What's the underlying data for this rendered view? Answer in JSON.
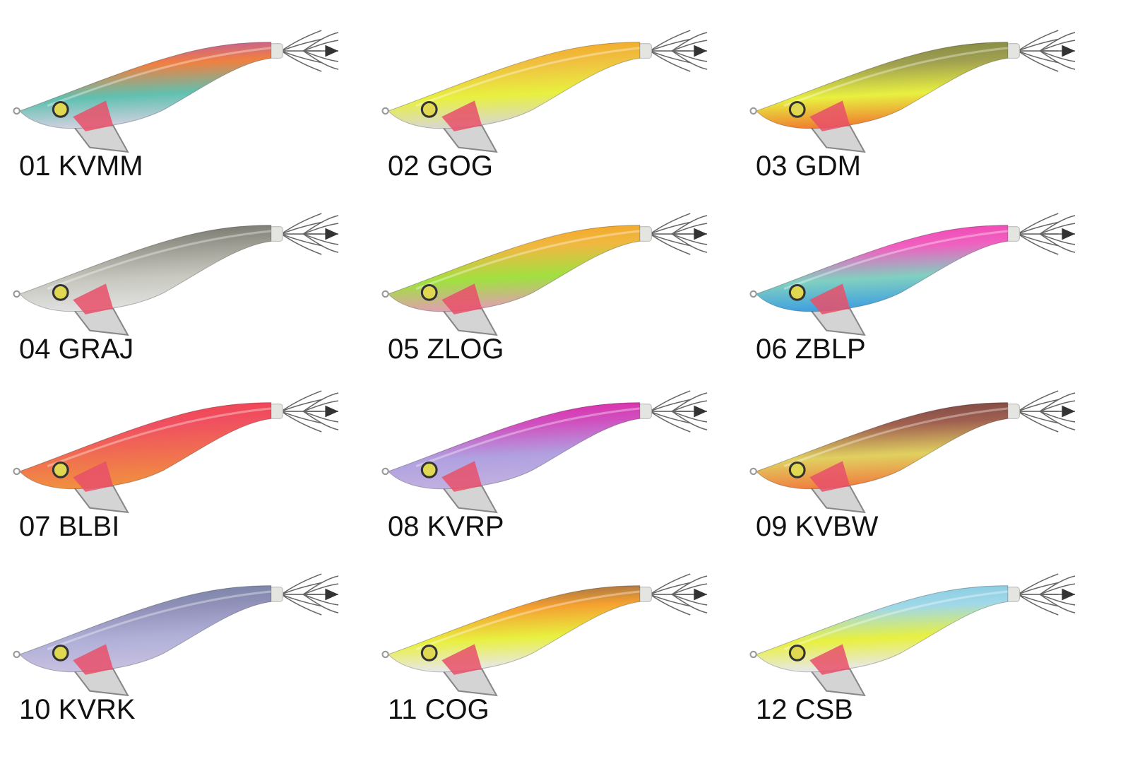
{
  "labels": [
    "01 KVMM",
    "02 GOG",
    "03 GDM",
    "04 GRAJ",
    "05 ZLOG",
    "06 ZBLP",
    "07 BLBI",
    "08 KVRP",
    "09 KVBW",
    "10 KVRK",
    "11 COG",
    "12 CSB"
  ]
}
